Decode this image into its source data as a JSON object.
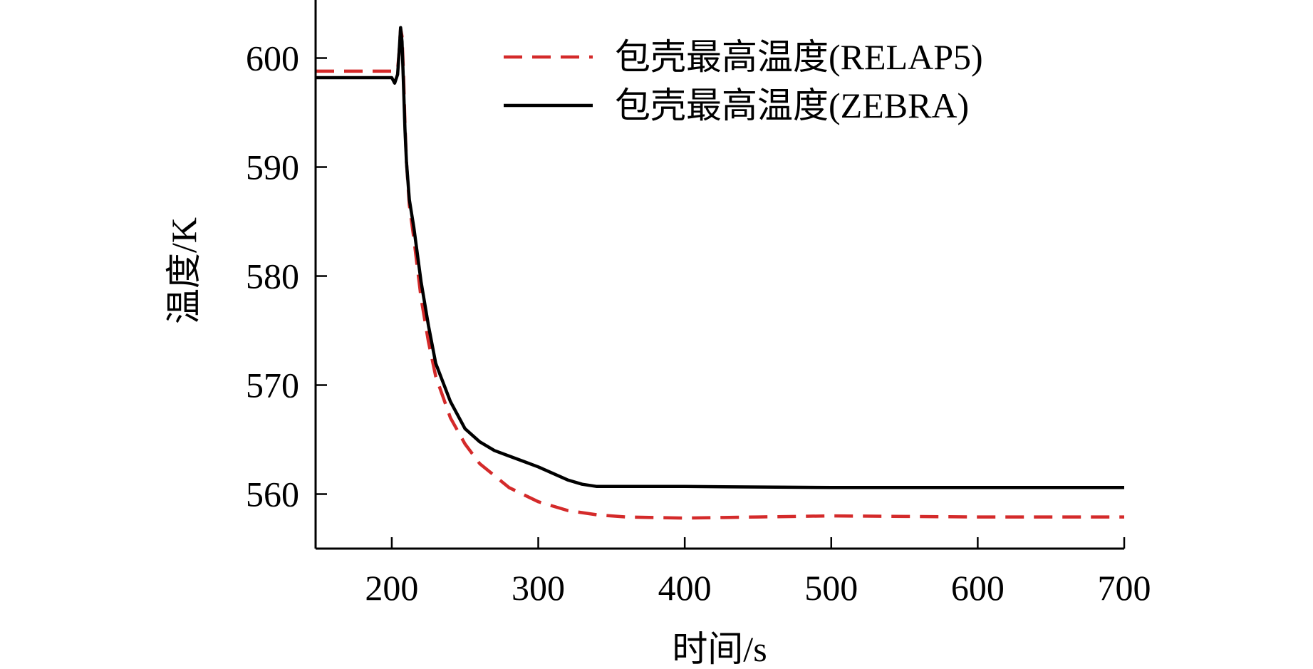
{
  "colors": {
    "relap5": "#d42a2a",
    "zebra": "#000000",
    "axis": "#000000",
    "background": "#ffffff"
  },
  "chart_data": {
    "type": "line",
    "title": "",
    "xlabel": "时间/s",
    "ylabel": "温度/K",
    "xlim": [
      148,
      700
    ],
    "ylim": [
      555,
      605
    ],
    "xticks": [
      200,
      300,
      400,
      500,
      600,
      700
    ],
    "yticks": [
      560,
      570,
      580,
      590,
      600
    ],
    "xtick_labels": [
      "200",
      "300",
      "400",
      "500",
      "600",
      "700"
    ],
    "ytick_labels": [
      "560",
      "570",
      "580",
      "590",
      "600"
    ],
    "grid": false,
    "legend_position": "top-right",
    "series": [
      {
        "name": "包壳最高温度(RELAP5)",
        "style": "dashed",
        "color": "#d42a2a",
        "x": [
          148,
          200,
          204,
          205,
          206,
          207,
          208,
          209,
          210,
          212,
          215,
          220,
          225,
          230,
          240,
          250,
          260,
          280,
          300,
          320,
          340,
          360,
          400,
          450,
          500,
          600,
          700
        ],
        "y": [
          598.8,
          598.8,
          598.9,
          600.5,
          602.7,
          602.0,
          598.5,
          594.0,
          590.5,
          586.5,
          583.5,
          578.0,
          574.0,
          570.8,
          567.0,
          564.6,
          562.8,
          560.6,
          559.3,
          558.5,
          558.1,
          557.9,
          557.8,
          557.9,
          558.0,
          557.9,
          557.9
        ]
      },
      {
        "name": "包壳最高温度(ZEBRA)",
        "style": "solid",
        "color": "#000000",
        "x": [
          148,
          198,
          200,
          202,
          204,
          205,
          206,
          207,
          208,
          209,
          210,
          212,
          215,
          220,
          225,
          230,
          240,
          250,
          260,
          270,
          280,
          290,
          300,
          310,
          320,
          330,
          340,
          360,
          400,
          500,
          600,
          700
        ],
        "y": [
          598.2,
          598.2,
          598.2,
          597.7,
          598.5,
          600.5,
          602.8,
          601.5,
          597.5,
          593.5,
          590.5,
          587.0,
          584.5,
          579.5,
          575.5,
          572.0,
          568.5,
          566.0,
          564.8,
          564.0,
          563.5,
          563.0,
          562.5,
          561.9,
          561.3,
          560.9,
          560.7,
          560.7,
          560.7,
          560.6,
          560.6,
          560.6
        ]
      }
    ]
  }
}
